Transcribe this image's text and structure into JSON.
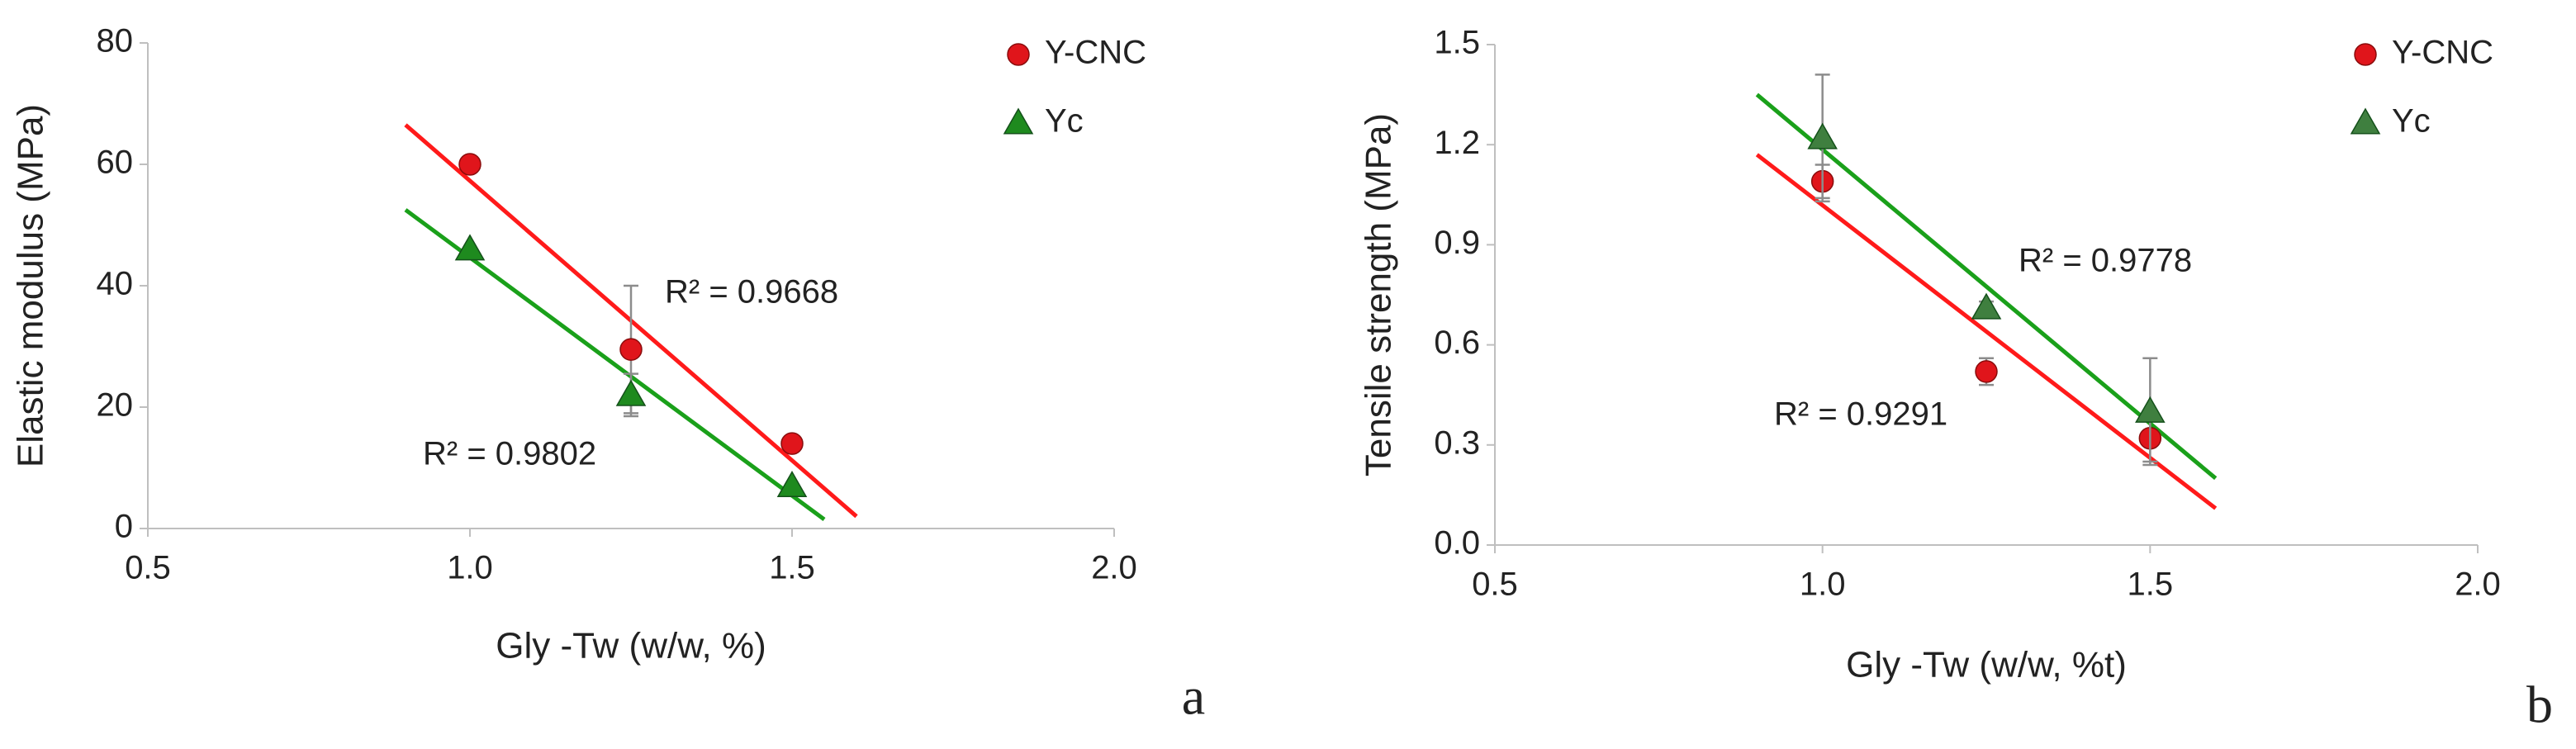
{
  "chart_data": [
    {
      "type": "scatter",
      "panel_label": "a",
      "x_label": "Gly -Tw (w/w, %)",
      "y_label": "Elastic modulus (MPa)",
      "xlim": [
        0.5,
        2
      ],
      "xticks": [
        0.5,
        {
          "value": 1,
          "label": "1.0"
        },
        1.5,
        {
          "value": 2,
          "label": "2.0"
        }
      ],
      "ylim": [
        0,
        80
      ],
      "yticks": [
        0,
        20,
        40,
        60,
        80
      ],
      "legend": "upper right",
      "series": [
        {
          "name": "Y-CNC",
          "color": "#e0151b",
          "marker": "circle",
          "x": [
            1,
            1.25,
            1.5
          ],
          "values": [
            60,
            29.5,
            14
          ],
          "errors": [
            null,
            10.5,
            null
          ],
          "trendline": {
            "color": "#ff1a1a",
            "x": [
              0.9,
              1.6
            ],
            "values": [
              66.5,
              2
            ]
          }
        },
        {
          "name": "Yc",
          "color": "#1e8a1e",
          "marker": "triangle",
          "x": [
            1,
            1.25,
            1.5
          ],
          "values": [
            46,
            22,
            7
          ],
          "errors": [
            null,
            3.5,
            null
          ],
          "trendline": {
            "color": "#1aa01a",
            "x": [
              0.9,
              1.55
            ],
            "values": [
              52.5,
              1.5
            ]
          }
        }
      ],
      "annotations": [
        "R² = 0.9668",
        "R² = 0.9802"
      ]
    },
    {
      "type": "scatter",
      "panel_label": "b",
      "x_label": "Gly -Tw (w/w, %t)",
      "y_label": "Tensile strength (MPa)",
      "xlim": [
        0.5,
        2
      ],
      "xticks": [
        0.5,
        {
          "value": 1,
          "label": "1.0"
        },
        1.5,
        {
          "value": 2,
          "label": "2.0"
        }
      ],
      "ylim": [
        0,
        1.5
      ],
      "yticks": [
        {
          "value": 0,
          "label": "0.0"
        },
        0.3,
        0.6,
        0.9,
        1.2,
        1.5
      ],
      "legend": "upper right",
      "series": [
        {
          "name": "Y-CNC",
          "color": "#e0151b",
          "marker": "circle",
          "x": [
            1,
            1.25,
            1.5
          ],
          "values": [
            1.09,
            0.52,
            0.32
          ],
          "errors": [
            0.05,
            0.04,
            0.07
          ],
          "trendline": {
            "color": "#ff1a1a",
            "x": [
              0.9,
              1.6
            ],
            "values": [
              1.17,
              0.11
            ]
          }
        },
        {
          "name": "Yc",
          "color": "#3f7f3f",
          "marker": "triangle",
          "x": [
            1,
            1.25,
            1.5
          ],
          "values": [
            1.22,
            0.71,
            0.4
          ],
          "errors": [
            0.19,
            0.02,
            0.16
          ],
          "trendline": {
            "color": "#1aa01a",
            "x": [
              0.9,
              1.6
            ],
            "values": [
              1.35,
              0.2
            ]
          }
        }
      ],
      "annotations": [
        "R² = 0.9778",
        "R² = 0.9291"
      ]
    }
  ]
}
